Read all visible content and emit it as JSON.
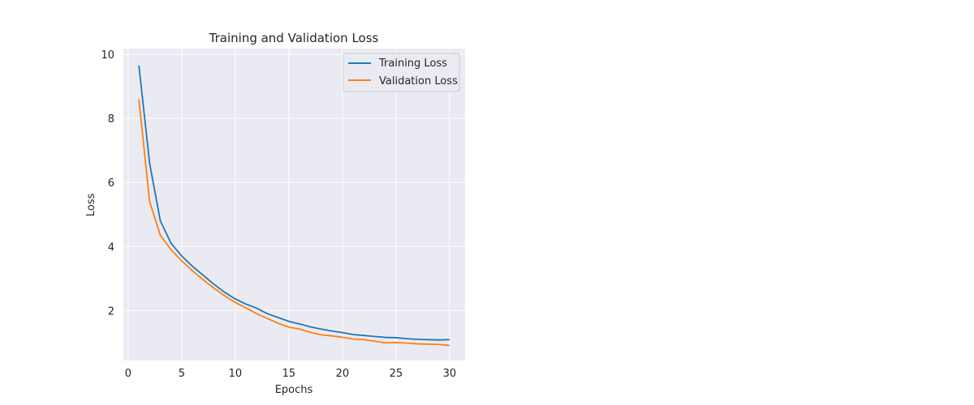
{
  "chart_data": {
    "type": "line",
    "title": "Training and Validation Loss",
    "xlabel": "Epochs",
    "ylabel": "Loss",
    "xlim": [
      -0.45,
      31.45
    ],
    "ylim": [
      0.44,
      10.18
    ],
    "xticks": [
      0,
      5,
      10,
      15,
      20,
      25,
      30
    ],
    "yticks": [
      2,
      4,
      6,
      8,
      10
    ],
    "grid": true,
    "legend_position": "top-right",
    "x": [
      1,
      2,
      3,
      4,
      5,
      6,
      7,
      8,
      9,
      10,
      11,
      12,
      13,
      14,
      15,
      16,
      17,
      18,
      19,
      20,
      21,
      22,
      23,
      24,
      25,
      26,
      27,
      28,
      29,
      30
    ],
    "series": [
      {
        "name": "Training Loss",
        "color": "#1f77b4",
        "values": [
          9.65,
          6.6,
          4.8,
          4.1,
          3.7,
          3.38,
          3.1,
          2.82,
          2.57,
          2.36,
          2.2,
          2.07,
          1.9,
          1.78,
          1.66,
          1.58,
          1.49,
          1.42,
          1.36,
          1.31,
          1.25,
          1.22,
          1.19,
          1.16,
          1.15,
          1.12,
          1.1,
          1.09,
          1.08,
          1.09
        ]
      },
      {
        "name": "Validation Loss",
        "color": "#ff7f0e",
        "values": [
          8.6,
          5.4,
          4.35,
          3.9,
          3.55,
          3.24,
          2.96,
          2.7,
          2.46,
          2.25,
          2.08,
          1.9,
          1.75,
          1.6,
          1.48,
          1.42,
          1.32,
          1.24,
          1.21,
          1.16,
          1.11,
          1.09,
          1.04,
          0.99,
          1.0,
          0.98,
          0.96,
          0.95,
          0.94,
          0.91
        ]
      }
    ]
  }
}
